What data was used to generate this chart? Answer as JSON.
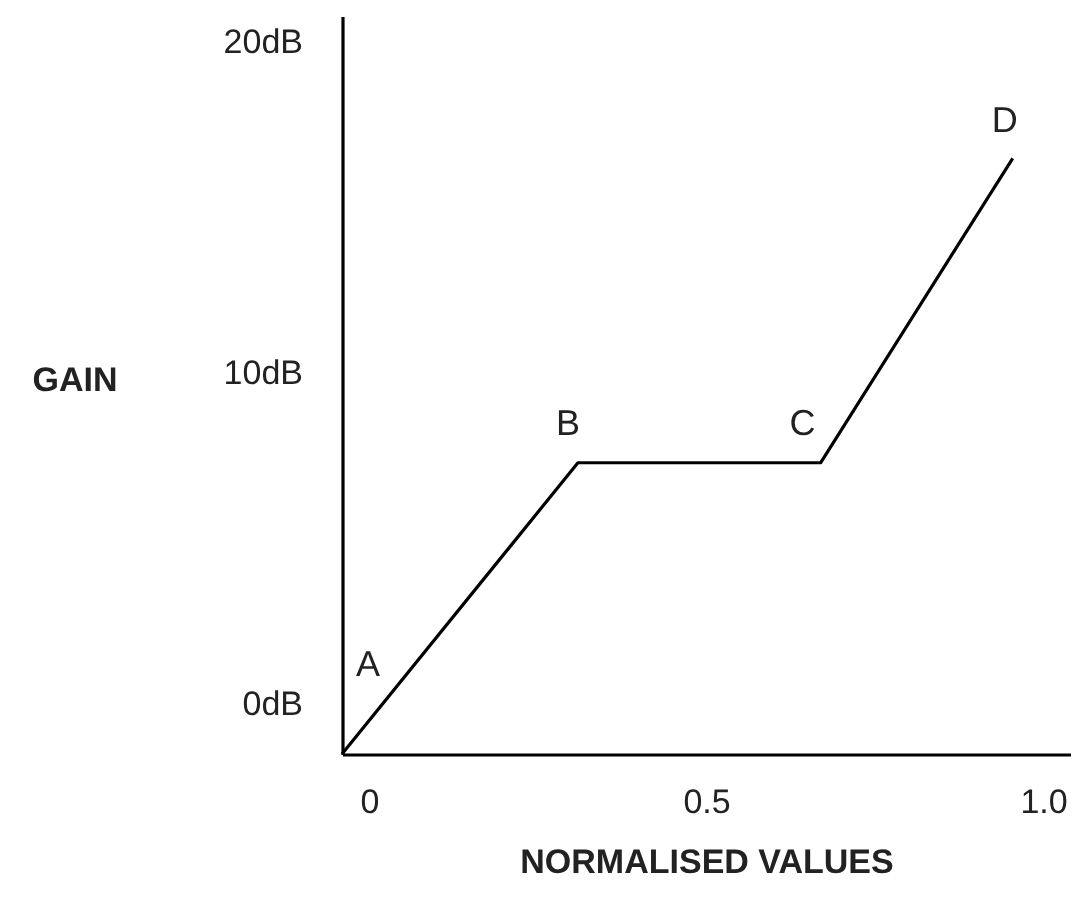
{
  "chart_data": {
    "type": "line",
    "xlabel": "NORMALISED VALUES",
    "ylabel": "GAIN",
    "x": [
      -0.04,
      0.31,
      0.67,
      0.955
    ],
    "series": [
      {
        "color": "#000000",
        "values": [
          -1.5,
          7.3,
          7.3,
          16.5
        ]
      }
    ],
    "xlim": [
      -0.04,
      1.04
    ],
    "ylim": [
      -1.5,
      20.8
    ],
    "xticks": [
      {
        "value": 0,
        "label": "0"
      },
      {
        "value": 0.5,
        "label": "0.5"
      },
      {
        "value": 1,
        "label": "1.0"
      }
    ],
    "yticks": [
      {
        "value": 0,
        "label": "0dB"
      },
      {
        "value": 10,
        "label": "10dB"
      },
      {
        "value": 20,
        "label": "20dB"
      }
    ],
    "annotations": [
      {
        "text": "A",
        "x": -0.04,
        "y": -1.5
      },
      {
        "text": "B",
        "x": 0.31,
        "y": 7.3
      },
      {
        "text": "C",
        "x": 0.67,
        "y": 7.3
      },
      {
        "text": "D",
        "x": 0.955,
        "y": 16.5
      }
    ]
  }
}
